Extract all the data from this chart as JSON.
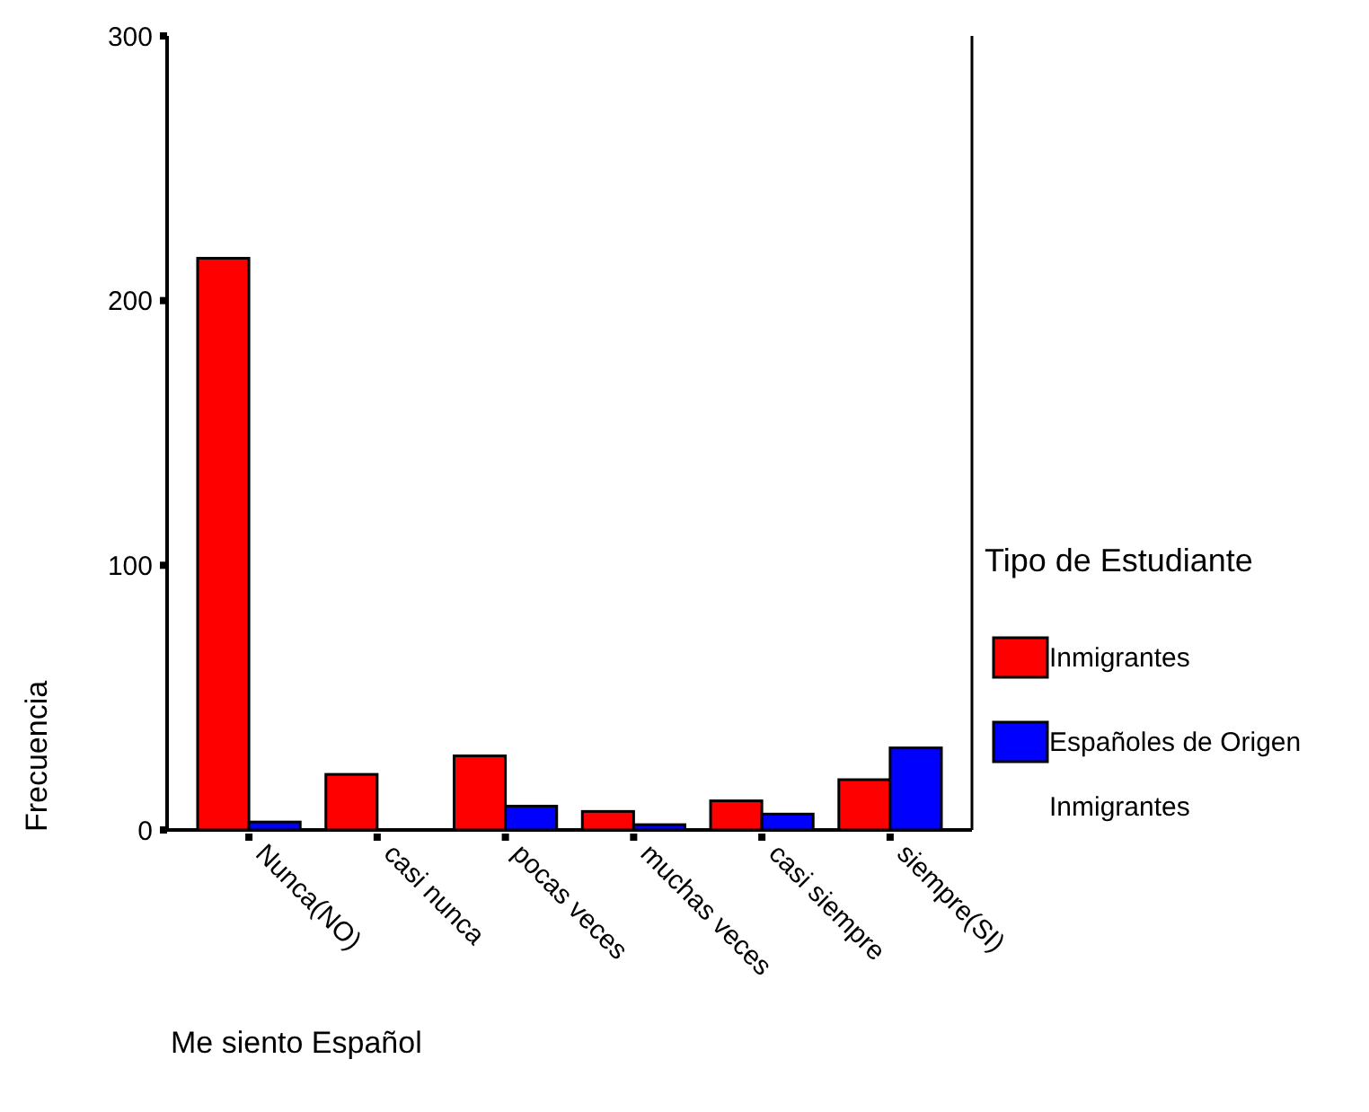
{
  "chart_data": {
    "type": "bar",
    "xlabel": "Me siento Español",
    "ylabel": "Frecuencia",
    "legend_title": "Tipo de Estudiante",
    "categories": [
      "Nunca(NO)",
      "casi nunca",
      "pocas veces",
      "muchas veces",
      "casi siempre",
      "siempre(SI)"
    ],
    "series": [
      {
        "name": "Inmigrantes",
        "color": "#ff0000",
        "values": [
          216,
          21,
          28,
          7,
          11,
          19
        ]
      },
      {
        "name": "Españoles de Origen Inmigrantes",
        "color": "#0000ff",
        "values": [
          3,
          0,
          9,
          2,
          6,
          31
        ]
      }
    ],
    "ylim": [
      0,
      300
    ],
    "yticks": [
      0,
      100,
      200,
      300
    ],
    "grid": false,
    "legend": "right"
  }
}
